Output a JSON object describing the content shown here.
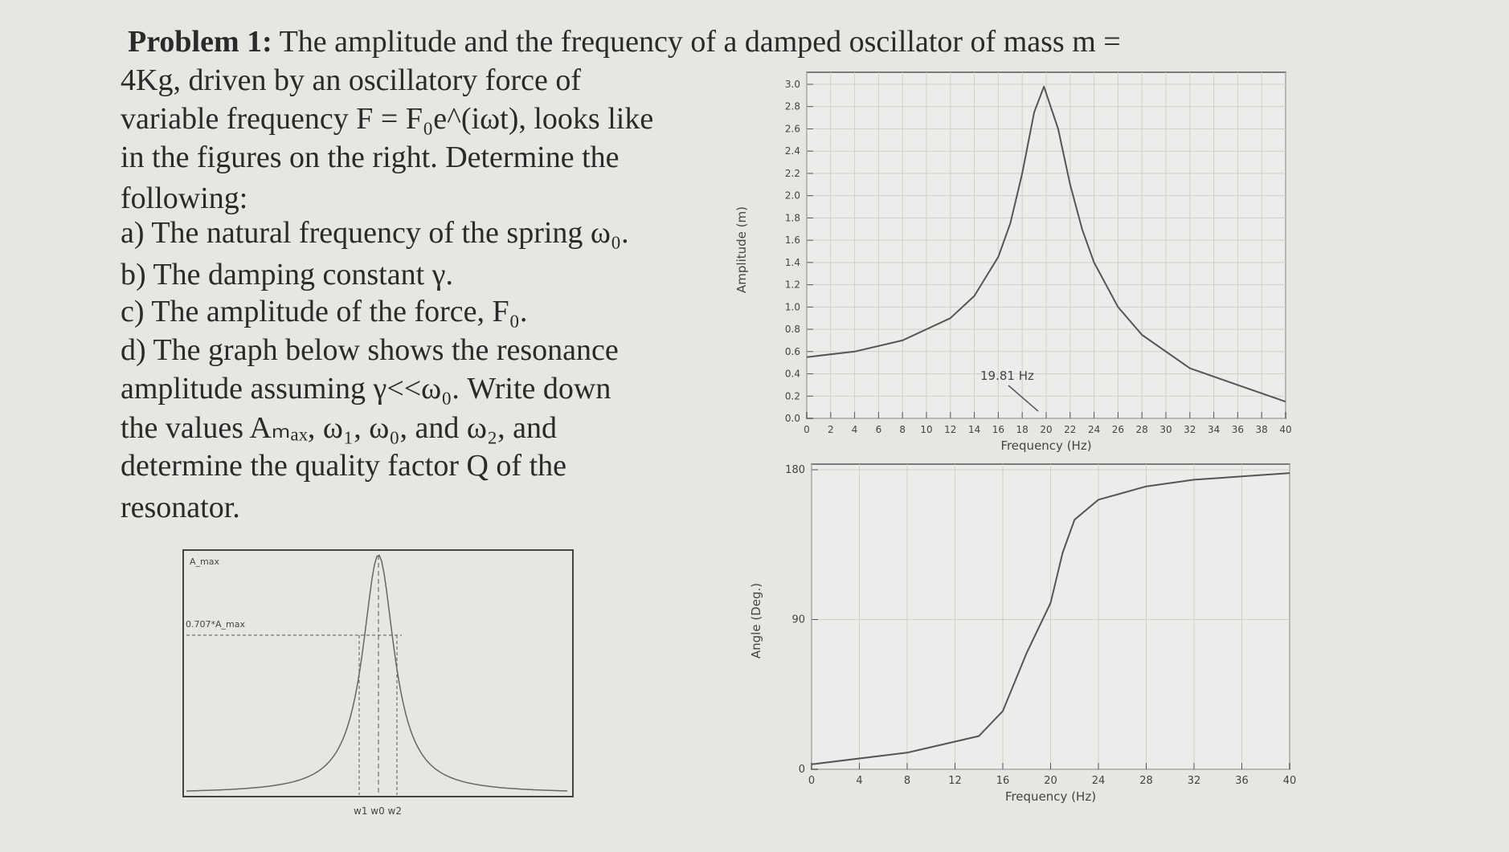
{
  "problem": {
    "title": "Problem 1:",
    "lines": [
      "The amplitude and the frequency of a damped oscillator of mass m =",
      "4Kg, driven by an oscillatory force of",
      "variable frequency F = F₀e^(iωt), looks like",
      "in the figures on the right. Determine the",
      "following:",
      "a) The natural frequency of the spring ω₀.",
      "b) The damping constant γ.",
      "c) The amplitude of the force, F₀.",
      "d) The graph below shows the resonance",
      "amplitude assuming γ<<ω₀. Write down",
      "the values Aₘₐₓ, ω₁, ω₀, and ω₂, and",
      "determine the quality factor Q of the",
      "resonator."
    ]
  },
  "sketch": {
    "amax_label": "A_max",
    "half_label": "0.707*A_max",
    "omega_labels": "w1 w0 w2"
  },
  "chart_data": [
    {
      "type": "line",
      "x_label": "Frequency (Hz)",
      "y_label": "Amplitude (m)",
      "annotation": "19.81 Hz",
      "x": [
        0,
        4,
        8,
        12,
        14,
        16,
        17,
        18,
        19,
        19.81,
        21,
        22,
        23,
        24,
        26,
        28,
        32,
        36,
        40
      ],
      "series": [
        {
          "color": "#555555",
          "values": [
            0.55,
            0.6,
            0.7,
            0.9,
            1.1,
            1.45,
            1.75,
            2.2,
            2.75,
            2.98,
            2.6,
            2.1,
            1.7,
            1.4,
            1.0,
            0.75,
            0.45,
            0.3,
            0.15
          ]
        }
      ],
      "xlim": [
        0,
        40
      ],
      "ylim": [
        0,
        3
      ],
      "xticks": [
        0,
        2,
        4,
        6,
        8,
        10,
        12,
        14,
        16,
        18,
        20,
        22,
        24,
        26,
        28,
        30,
        32,
        34,
        36,
        38,
        40
      ],
      "yticks": [
        {
          "value": 0,
          "label": "0.0"
        },
        0.2,
        0.4,
        0.6,
        0.8,
        {
          "value": 1,
          "label": "1.0"
        },
        1.2,
        1.4,
        1.6,
        1.8,
        {
          "value": 2,
          "label": "2.0"
        },
        2.2,
        2.4,
        2.6,
        2.8,
        {
          "value": 3,
          "label": "3.0"
        }
      ],
      "grid": true
    },
    {
      "type": "line",
      "x_label": "Frequency (Hz)",
      "y_label": "Angle (Deg.)",
      "x": [
        0,
        8,
        14,
        16,
        18,
        19,
        20,
        21,
        22,
        24,
        28,
        32,
        36,
        40
      ],
      "series": [
        {
          "color": "#555555",
          "values": [
            3,
            10,
            20,
            35,
            70,
            85,
            100,
            130,
            150,
            162,
            170,
            174,
            176,
            178
          ]
        }
      ],
      "xlim": [
        0,
        40
      ],
      "ylim": [
        0,
        180
      ],
      "xticks": [
        0,
        4,
        8,
        12,
        16,
        20,
        24,
        28,
        32,
        36,
        40
      ],
      "yticks": [
        0,
        90,
        180
      ],
      "grid": true
    }
  ]
}
